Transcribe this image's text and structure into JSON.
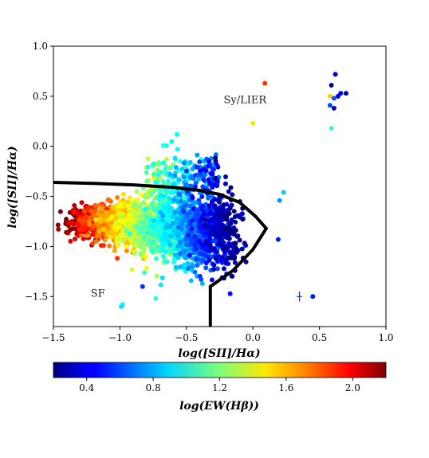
{
  "chart_data": {
    "type": "scatter",
    "xlabel": "log([SII]/Hα)",
    "ylabel": "log([SII]/Hα)",
    "xlim": [
      -1.5,
      1.0
    ],
    "ylim": [
      -1.8,
      1.0
    ],
    "x_ticks": [
      "−1.5",
      "−1.0",
      "−0.5",
      "0.0",
      "0.5",
      "1.0"
    ],
    "x_tick_values": [
      -1.5,
      -1.0,
      -0.5,
      0.0,
      0.5,
      1.0
    ],
    "y_ticks": [
      "1.0",
      "0.5",
      "0.0",
      "−0.5",
      "−1.0",
      "−1.5"
    ],
    "y_tick_values": [
      1.0,
      0.5,
      0.0,
      -0.5,
      -1.0,
      -1.5
    ],
    "grid": false,
    "annotations": [
      {
        "text": "Sy/LIER",
        "x": -0.22,
        "y": 0.43
      },
      {
        "text": "SF",
        "x": -1.22,
        "y": -1.5
      }
    ],
    "colorbar": {
      "label": "log(EW(Hβ))",
      "colormap": "jet",
      "range": [
        0.2,
        2.2
      ],
      "ticks": [
        "0.4",
        "0.8",
        "1.2",
        "1.6",
        "2.0"
      ],
      "tick_values": [
        0.4,
        0.8,
        1.2,
        1.6,
        2.0
      ]
    },
    "dividing_line": {
      "upper_curve": [
        [
          -1.5,
          -0.36
        ],
        [
          -1.2,
          -0.37
        ],
        [
          -0.9,
          -0.385
        ],
        [
          -0.6,
          -0.41
        ],
        [
          -0.4,
          -0.44
        ],
        [
          -0.25,
          -0.48
        ],
        [
          -0.1,
          -0.56
        ],
        [
          0.02,
          -0.7
        ],
        [
          0.1,
          -0.82
        ]
      ],
      "lower_curve": [
        [
          0.1,
          -0.82
        ],
        [
          0.0,
          -1.03
        ],
        [
          -0.15,
          -1.24
        ],
        [
          -0.32,
          -1.4
        ]
      ],
      "vertical_segment": [
        [
          -0.32,
          -1.4
        ],
        [
          -0.32,
          -1.8
        ]
      ]
    },
    "error_bar": {
      "x": 0.35,
      "y": -1.5,
      "xerr": 0.02,
      "yerr": 0.05,
      "color": "#1f3fbf"
    },
    "outlier_points": [
      {
        "x": 0.62,
        "y": 0.72,
        "c": 0.35
      },
      {
        "x": 0.59,
        "y": 0.61,
        "c": 0.25
      },
      {
        "x": 0.66,
        "y": 0.53,
        "c": 0.45
      },
      {
        "x": 0.7,
        "y": 0.53,
        "c": 0.3
      },
      {
        "x": 0.64,
        "y": 0.5,
        "c": 0.4
      },
      {
        "x": 0.58,
        "y": 0.5,
        "c": 1.55
      },
      {
        "x": 0.61,
        "y": 0.48,
        "c": 0.6
      },
      {
        "x": 0.58,
        "y": 0.41,
        "c": 0.6
      },
      {
        "x": 0.61,
        "y": 0.38,
        "c": 0.3
      },
      {
        "x": 0.59,
        "y": 0.18,
        "c": 1.05
      },
      {
        "x": 0.09,
        "y": 0.63,
        "c": 1.85
      },
      {
        "x": 0.0,
        "y": 0.23,
        "c": 1.5
      },
      {
        "x": 0.23,
        "y": -0.46,
        "c": 0.85
      },
      {
        "x": 0.2,
        "y": -0.54,
        "c": 0.75
      },
      {
        "x": 0.19,
        "y": -0.93,
        "c": 0.5
      },
      {
        "x": -0.98,
        "y": -1.58,
        "c": 0.95
      },
      {
        "x": -0.99,
        "y": -1.6,
        "c": 0.9
      },
      {
        "x": -0.83,
        "y": -1.4,
        "c": 0.55
      },
      {
        "x": -0.73,
        "y": -1.52,
        "c": 1.05
      },
      {
        "x": 0.45,
        "y": -1.5,
        "c": 0.5
      }
    ]
  }
}
